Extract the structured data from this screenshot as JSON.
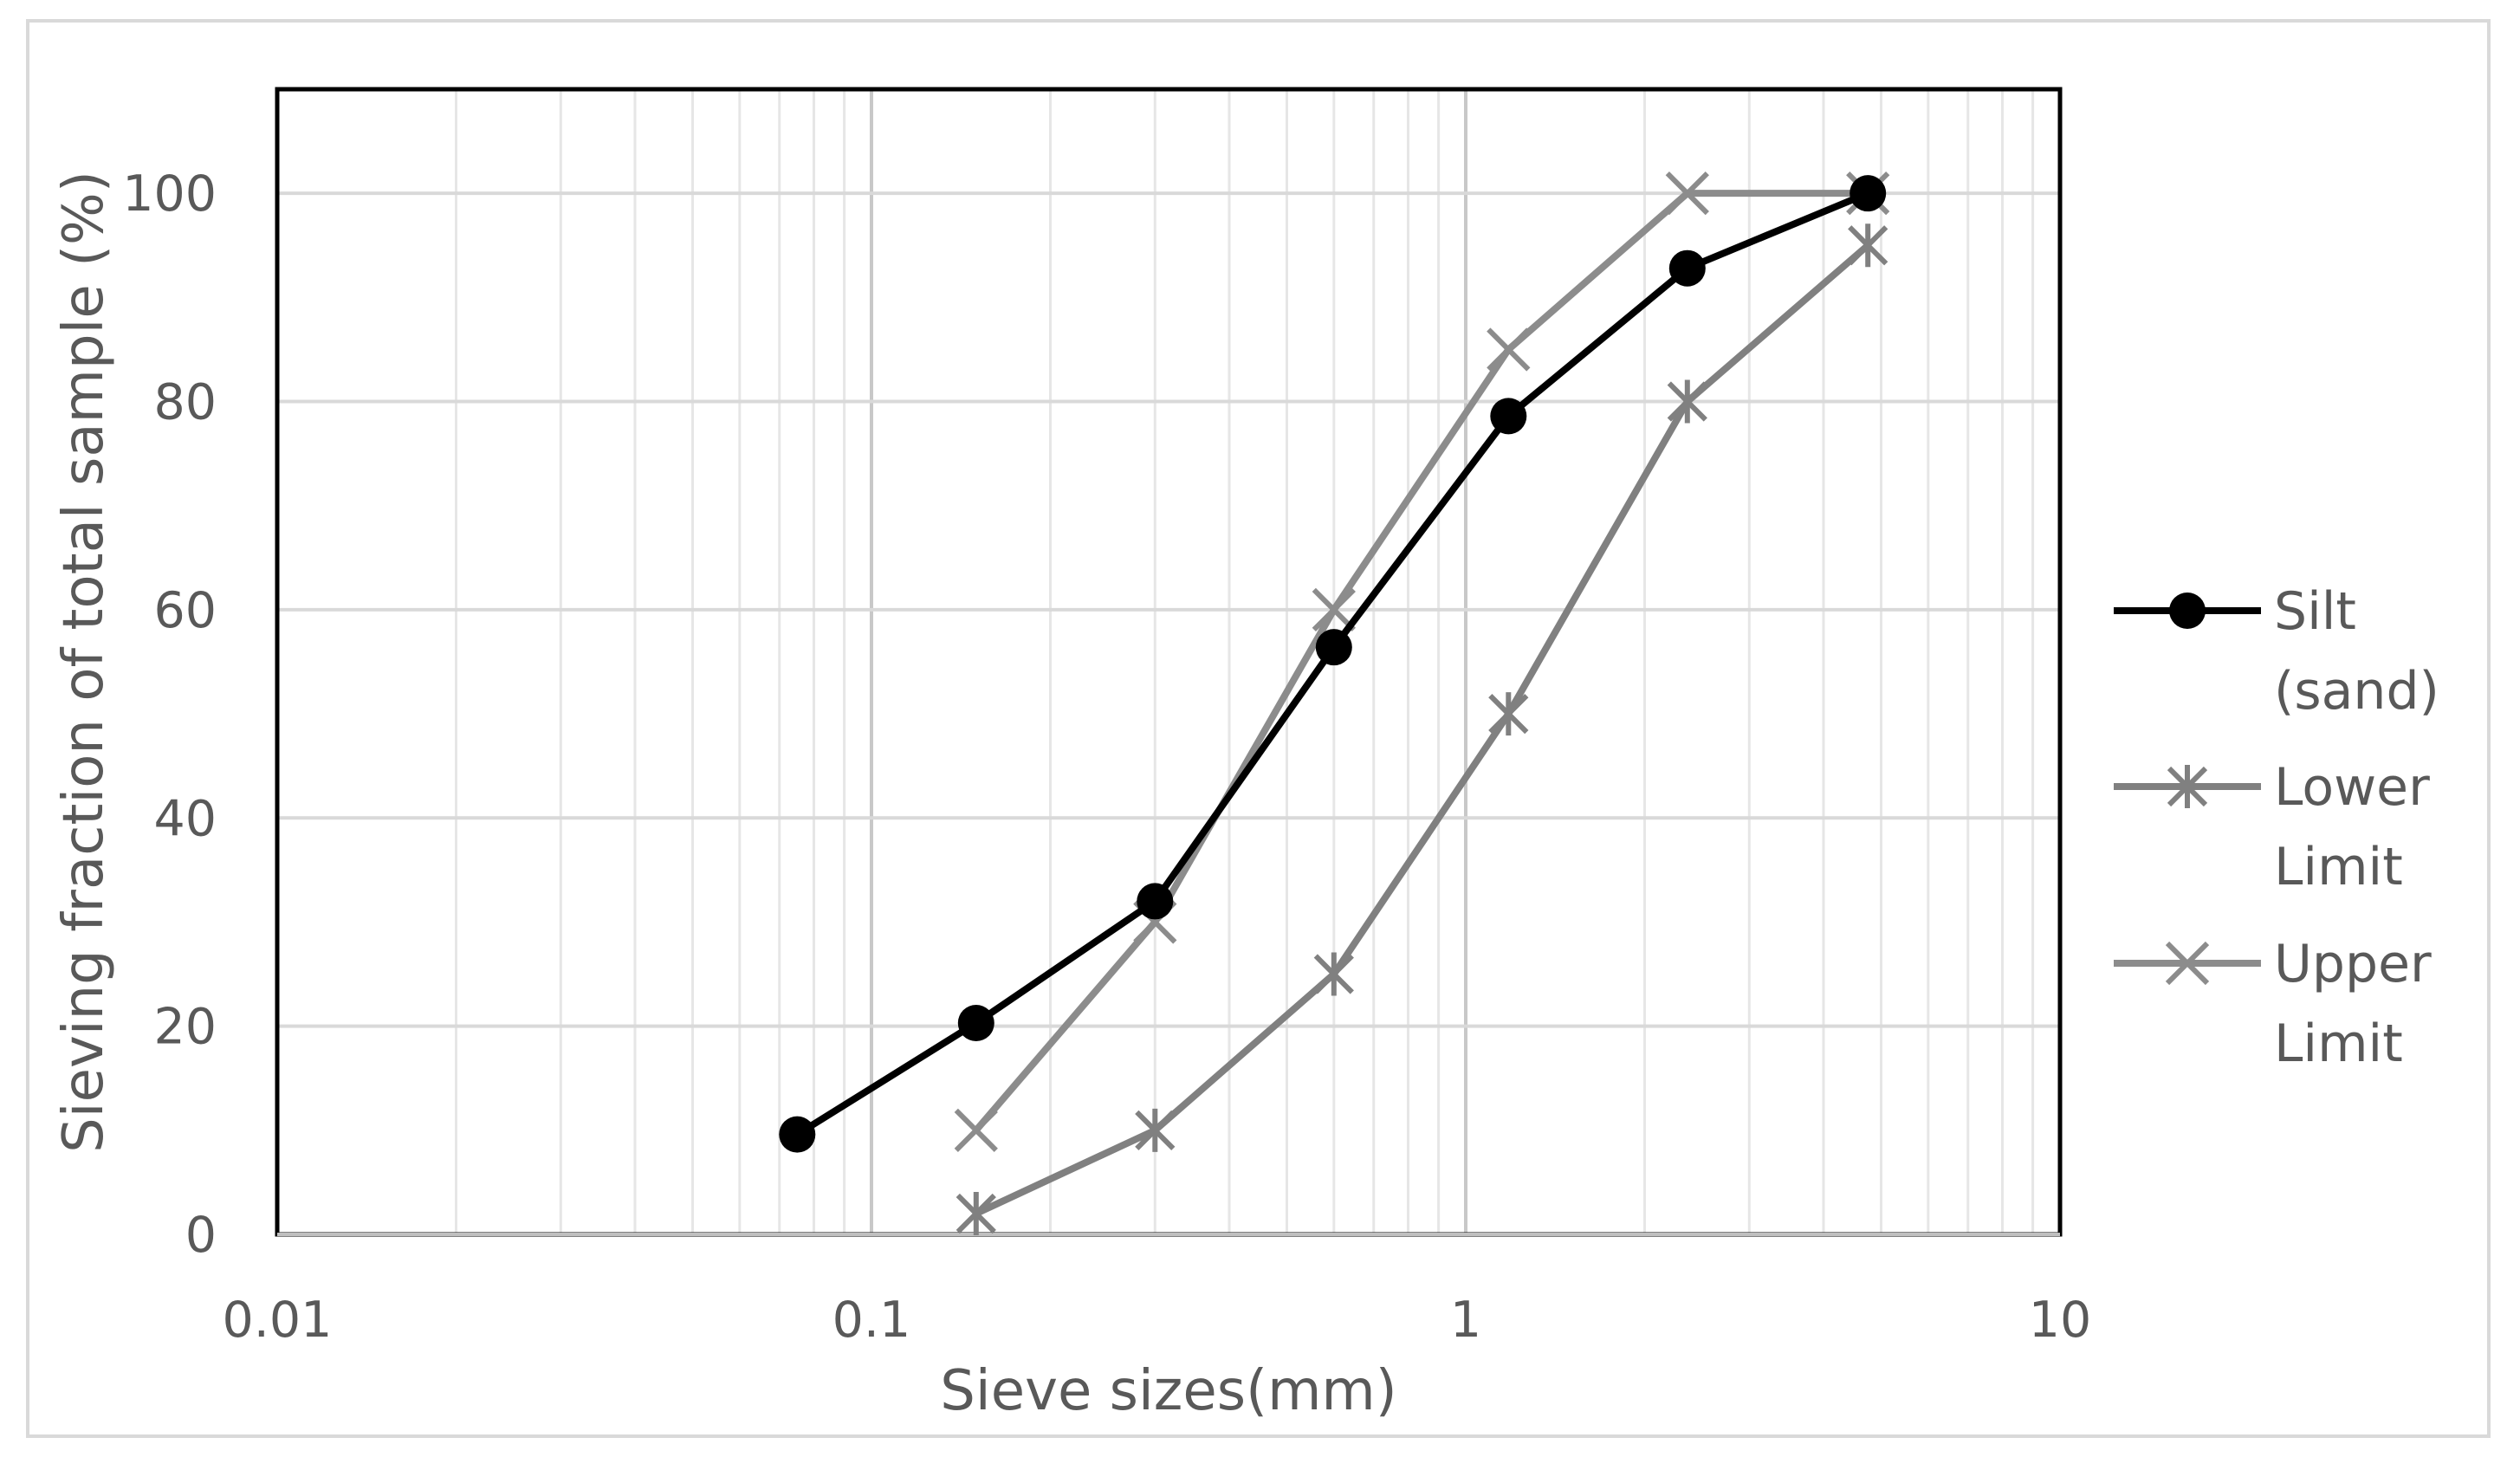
{
  "chart_data": {
    "type": "scatter",
    "title": "",
    "xlabel": "Sieve sizes(mm)",
    "ylabel": "Sieving fraction of total sample (%)",
    "x_scale": "log",
    "xlim": [
      0.01,
      10
    ],
    "ylim": [
      0,
      110
    ],
    "x_ticks": [
      "0.01",
      "0.1",
      "1",
      "10"
    ],
    "y_ticks": [
      "0",
      "20",
      "40",
      "60",
      "80",
      "100"
    ],
    "grid": true,
    "legend_position": "right",
    "series": [
      {
        "name": "Silt (sand)",
        "legend_lines": [
          "Silt",
          "(sand)"
        ],
        "marker": "circle",
        "color": "#000000",
        "points": [
          [
            0.075,
            9.6
          ],
          [
            0.15,
            20.3
          ],
          [
            0.3,
            32
          ],
          [
            0.6,
            56.4
          ],
          [
            1.18,
            78.6
          ],
          [
            2.36,
            92.8
          ],
          [
            4.75,
            100
          ]
        ]
      },
      {
        "name": "Lower Limit",
        "legend_lines": [
          "Lower",
          "Limit"
        ],
        "marker": "star",
        "color": "#808080",
        "points": [
          [
            0.15,
            2
          ],
          [
            0.3,
            10
          ],
          [
            0.6,
            25
          ],
          [
            1.18,
            50
          ],
          [
            2.36,
            80
          ],
          [
            4.75,
            95
          ]
        ]
      },
      {
        "name": "Upper Limit",
        "legend_lines": [
          "Upper",
          "Limit"
        ],
        "marker": "cross",
        "color": "#8c8c8c",
        "points": [
          [
            0.15,
            10
          ],
          [
            0.3,
            30
          ],
          [
            0.6,
            60
          ],
          [
            1.18,
            85
          ],
          [
            2.36,
            100
          ],
          [
            4.75,
            100
          ]
        ]
      }
    ]
  }
}
